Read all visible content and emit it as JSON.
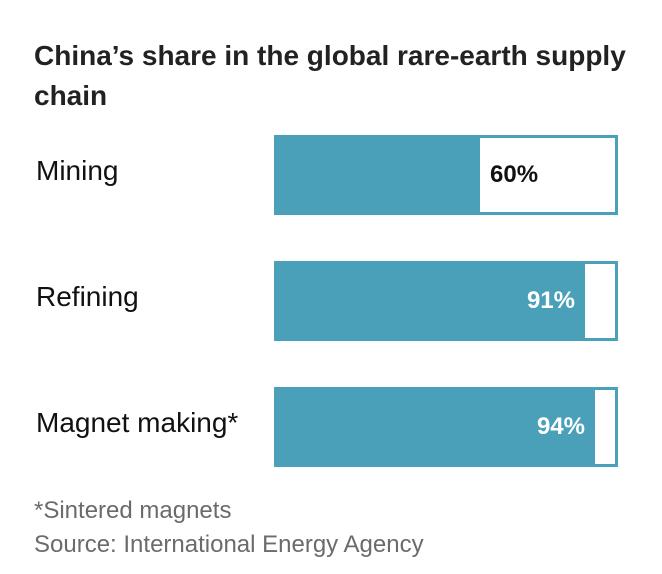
{
  "chart_data": {
    "type": "bar",
    "orientation": "horizontal",
    "title": "China’s share in the global rare-earth supply chain",
    "categories": [
      "Mining",
      "Refining",
      "Magnet making*"
    ],
    "values": [
      60,
      91,
      94
    ],
    "value_labels": [
      "60%",
      "91%",
      "94%"
    ],
    "unit": "%",
    "xlim": [
      0,
      100
    ],
    "footnote": "*Sintered magnets",
    "source": "Source: International Energy Agency",
    "colors": {
      "fill": "#4aa0b8",
      "remainder": "#ffffff",
      "label_inside": "#ffffff",
      "label_outside": "#111111"
    }
  }
}
